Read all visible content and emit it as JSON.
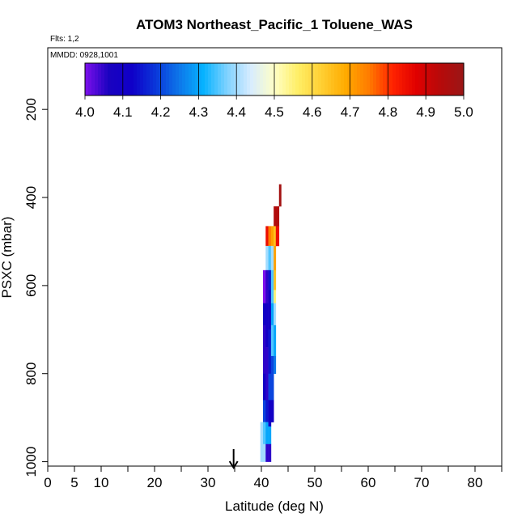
{
  "chart_data": {
    "type": "heatmap",
    "title": "ATOM3 Northeast_Pacific_1 Toluene_WAS",
    "flights_label": "Flts: 1,2",
    "dates_label": "MMDD: 0928,1001",
    "xlabel": "Latitude (deg N)",
    "ylabel": "PSXC (mbar)",
    "xlim": [
      0,
      85
    ],
    "ylim": [
      1010,
      60
    ],
    "y_reversed": true,
    "x_ticks": [
      0,
      5,
      10,
      20,
      30,
      40,
      50,
      60,
      70,
      80
    ],
    "x_minor_ticks": [
      15,
      25,
      35,
      45,
      55,
      65,
      75,
      85
    ],
    "y_ticks": [
      200,
      400,
      600,
      800,
      1000
    ],
    "colorbar": {
      "min": 4.0,
      "max": 5.0,
      "tick_labels": [
        "4.0",
        "4.1",
        "4.2",
        "4.3",
        "4.4",
        "4.5",
        "4.6",
        "4.7",
        "4.8",
        "4.9",
        "5.0"
      ],
      "colors": [
        "#7d10ec",
        "#1a02c0",
        "#0f00c8",
        "#0a38da",
        "#0d78ea",
        "#06b2ff",
        "#7fd2ff",
        "#d7ecff",
        "#ffffc6",
        "#ffee66",
        "#ffcf33",
        "#ffab00",
        "#ff7b00",
        "#ff2200",
        "#e00000",
        "#b70a0a",
        "#9a1616"
      ]
    },
    "marker": {
      "x": 34.8,
      "symbol": "arrow"
    },
    "columns": [
      {
        "x0": 39.8,
        "x1": 40.3,
        "cells": [
          [
            910,
            1000,
            4.4
          ]
        ]
      },
      {
        "x0": 40.3,
        "x1": 40.8,
        "cells": [
          [
            565,
            640,
            4.0
          ],
          [
            640,
            690,
            4.1
          ],
          [
            690,
            800,
            4.05
          ],
          [
            800,
            860,
            4.1
          ],
          [
            860,
            910,
            4.2
          ],
          [
            910,
            960,
            4.35
          ],
          [
            960,
            1000,
            4.4
          ]
        ]
      },
      {
        "x0": 40.8,
        "x1": 41.3,
        "cells": [
          [
            465,
            510,
            4.85
          ],
          [
            510,
            565,
            4.4
          ],
          [
            565,
            640,
            4.05
          ],
          [
            640,
            740,
            4.1
          ],
          [
            740,
            860,
            4.05
          ],
          [
            860,
            910,
            4.15
          ],
          [
            910,
            960,
            4.3
          ],
          [
            960,
            1000,
            4.05
          ]
        ]
      },
      {
        "x0": 41.3,
        "x1": 41.8,
        "cells": [
          [
            465,
            510,
            4.75
          ],
          [
            510,
            565,
            4.35
          ],
          [
            565,
            610,
            4.15
          ],
          [
            610,
            700,
            4.1
          ],
          [
            700,
            800,
            4.15
          ],
          [
            800,
            860,
            4.2
          ],
          [
            860,
            920,
            4.1
          ],
          [
            920,
            960,
            4.3
          ],
          [
            960,
            1000,
            4.05
          ]
        ]
      },
      {
        "x0": 41.8,
        "x1": 42.3,
        "cells": [
          [
            465,
            510,
            4.7
          ],
          [
            510,
            565,
            4.4
          ],
          [
            565,
            640,
            4.35
          ],
          [
            640,
            690,
            4.3
          ],
          [
            690,
            760,
            4.35
          ],
          [
            760,
            860,
            4.2
          ],
          [
            860,
            910,
            4.1
          ]
        ]
      },
      {
        "x0": 42.3,
        "x1": 42.7,
        "cells": [
          [
            420,
            465,
            4.95
          ],
          [
            465,
            510,
            4.65
          ],
          [
            510,
            565,
            4.7
          ],
          [
            565,
            610,
            4.65
          ],
          [
            610,
            640,
            4.55
          ],
          [
            640,
            690,
            4.4
          ],
          [
            690,
            760,
            4.3
          ],
          [
            760,
            800,
            4.25
          ]
        ]
      },
      {
        "x0": 42.7,
        "x1": 43.3,
        "cells": [
          [
            420,
            465,
            4.95
          ],
          [
            465,
            510,
            4.85
          ]
        ]
      },
      {
        "x0": 43.3,
        "x1": 43.7,
        "cells": [
          [
            370,
            420,
            4.98
          ]
        ]
      }
    ]
  }
}
